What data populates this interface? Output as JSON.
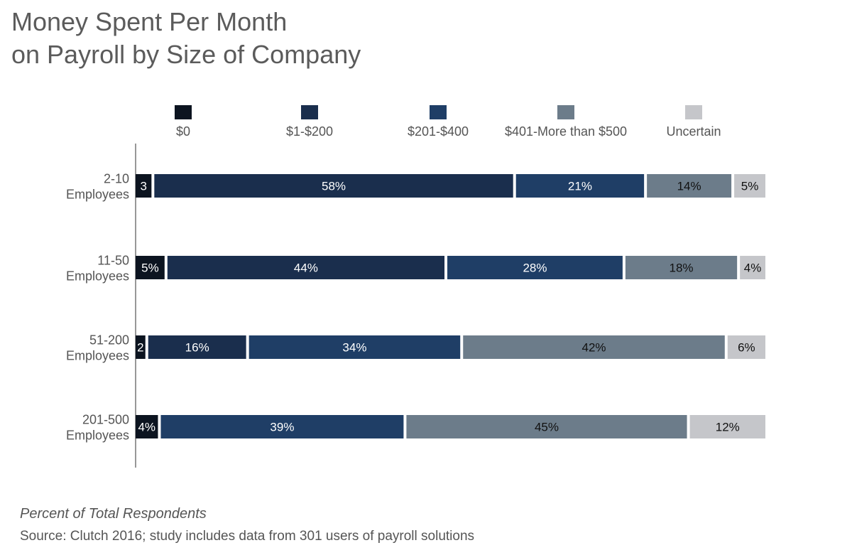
{
  "chart_data": {
    "type": "bar",
    "orientation": "horizontal",
    "stacked": true,
    "title_lines": [
      "Money Spent Per Month",
      "on Payroll by Size of Company"
    ],
    "footnote": "Percent of Total Respondents",
    "source": "Source: Clutch 2016; study includes data from 301 users of payroll solutions",
    "categories": [
      "2-10 Employees",
      "11-50 Employees",
      "51-200 Employees",
      "201-500 Employees"
    ],
    "category_lines": [
      [
        "2-10",
        "Employees"
      ],
      [
        "11-50",
        "Employees"
      ],
      [
        "51-200",
        "Employees"
      ],
      [
        "201-500",
        "Employees"
      ]
    ],
    "series": [
      {
        "name": "$0",
        "color": "#0c1420",
        "values": [
          3,
          5,
          2,
          4
        ],
        "labels": [
          "3",
          "5%",
          "2",
          "4%"
        ],
        "label_color": "#ffffff"
      },
      {
        "name": "$1-$200",
        "color": "#1a2e4d",
        "values": [
          58,
          44,
          16,
          0
        ],
        "labels": [
          "58%",
          "44%",
          "16%",
          ""
        ],
        "label_color": "#ffffff"
      },
      {
        "name": "$201-$400",
        "color": "#1f3e66",
        "values": [
          21,
          28,
          34,
          39
        ],
        "labels": [
          "21%",
          "28%",
          "34%",
          "39%"
        ],
        "label_color": "#ffffff"
      },
      {
        "name": "$401-More than $500",
        "color": "#6c7c8a",
        "values": [
          14,
          18,
          42,
          45
        ],
        "labels": [
          "14%",
          "18%",
          "42%",
          "45%"
        ],
        "label_color": "#111111"
      },
      {
        "name": "Uncertain",
        "color": "#c5c6ca",
        "values": [
          5,
          4,
          6,
          12
        ],
        "labels": [
          "5%",
          "4%",
          "6%",
          "12%"
        ],
        "label_color": "#111111"
      }
    ],
    "legend_position": "top",
    "grid": false
  }
}
